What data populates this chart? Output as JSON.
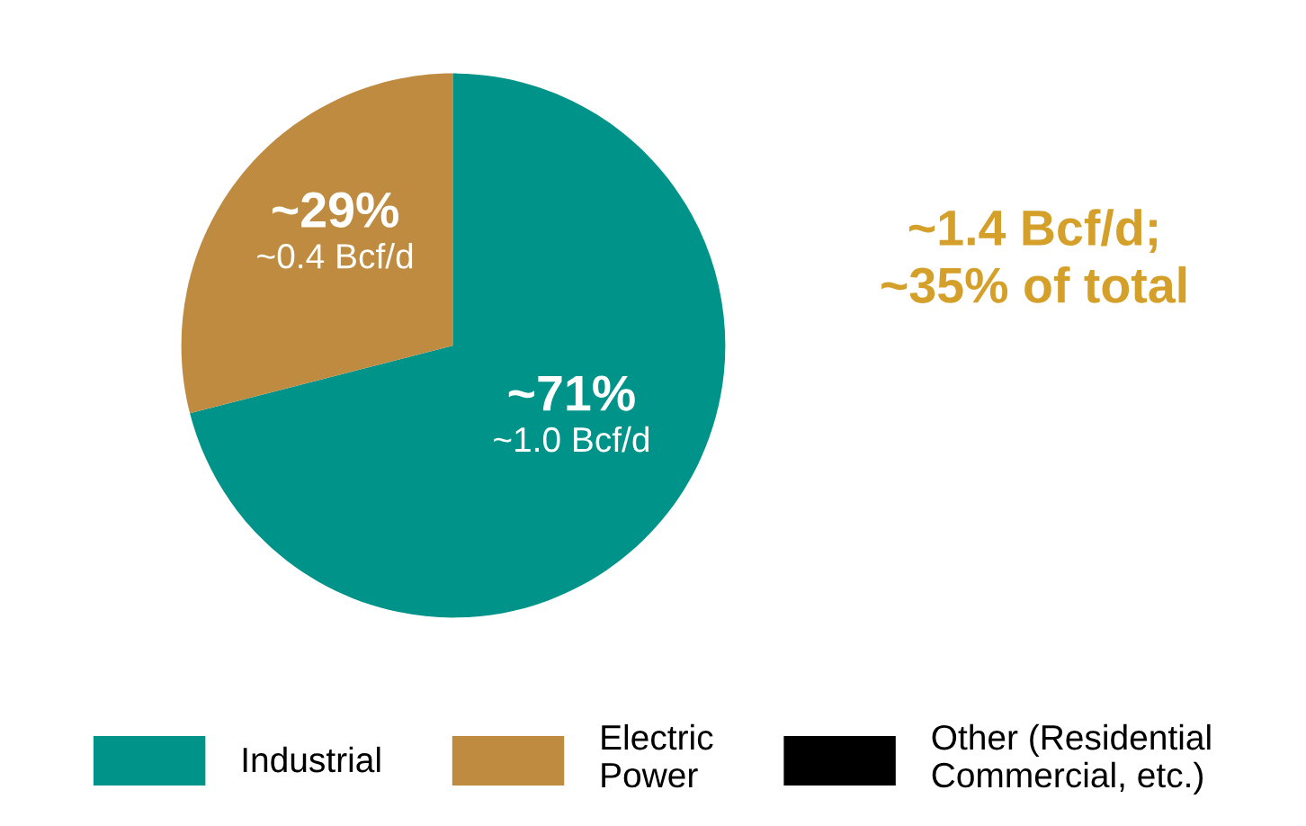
{
  "chart_data": {
    "type": "pie",
    "categories": [
      "Industrial",
      "Electric\nPower",
      "Other (Residential\nCommercial, etc.)"
    ],
    "values": [
      71,
      29,
      0
    ],
    "colors": [
      "#00938a",
      "#bf8b40",
      "#000000"
    ],
    "value_labels": [
      "~71%",
      "~29%",
      null
    ],
    "annotations": [
      {
        "text": "~1.0 Bcf/d",
        "x": "Industrial"
      },
      {
        "text": "~0.4 Bcf/d",
        "x": "Electric\nPower"
      },
      "~1.4 Bcf/d;\n~35% of total"
    ],
    "legend": "bottom"
  }
}
